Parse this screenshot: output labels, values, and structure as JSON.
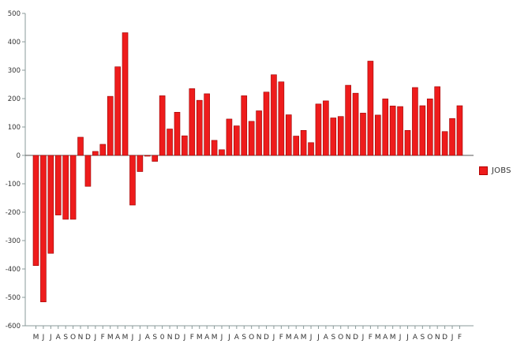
{
  "chart_data": {
    "type": "bar",
    "title": "",
    "xlabel": "",
    "ylabel": "",
    "ylim": [
      -600,
      500
    ],
    "yticks": [
      -600,
      -500,
      -400,
      -300,
      -200,
      -100,
      0,
      100,
      200,
      300,
      400,
      500
    ],
    "grid": false,
    "legend_position": "right",
    "categories": [
      "M",
      "J",
      "J",
      "A",
      "S",
      "O",
      "N",
      "D",
      "J",
      "F",
      "M",
      "A",
      "M",
      "J",
      "J",
      "A",
      "S",
      "0",
      "N",
      "D",
      "J",
      "F",
      "M",
      "A",
      "M",
      "J",
      "J",
      "A",
      "S",
      "O",
      "N",
      "D",
      "J",
      "F",
      "M",
      "A",
      "M",
      "J",
      "J",
      "A",
      "S",
      "O",
      "N",
      "D",
      "J",
      "F",
      "M",
      "A",
      "M",
      "J",
      "J",
      "A",
      "S",
      "O",
      "N",
      "D",
      "J",
      "F"
    ],
    "series": [
      {
        "name": "JOBS",
        "color": "#ee1c1c",
        "values": [
          -388,
          -516,
          -345,
          -210,
          -225,
          -225,
          64,
          -109,
          14,
          39,
          208,
          312,
          432,
          -175,
          -57,
          -2,
          -21,
          210,
          93,
          152,
          69,
          235,
          194,
          217,
          53,
          20,
          128,
          104,
          210,
          120,
          157,
          223,
          284,
          259,
          143,
          68,
          88,
          45,
          181,
          192,
          132,
          137,
          247,
          219,
          149,
          332,
          142,
          199,
          174,
          172,
          88,
          239,
          175,
          199,
          242,
          84,
          130,
          175
        ]
      }
    ]
  }
}
